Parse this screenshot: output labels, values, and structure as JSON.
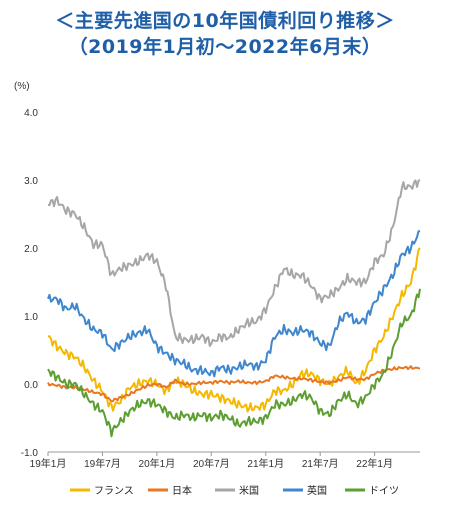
{
  "header": {
    "title_line1": "＜主要先進国の10年国債利回り推移＞",
    "title_line2": "（2019年1月初～2022年6月末）"
  },
  "chart_data": {
    "type": "line",
    "title": "＜主要先進国の10年国債利回り推移＞（2019年1月初～2022年6月末）",
    "ylabel": "(%)",
    "ylim": [
      -1.0,
      4.0
    ],
    "yticks": [
      "4.0",
      "3.0",
      "2.0",
      "1.0",
      "0.0",
      "-1.0"
    ],
    "xtick_labels": [
      "19年1月",
      "19年7月",
      "20年1月",
      "20年7月",
      "21年1月",
      "21年7月",
      "22年1月"
    ],
    "x": [
      "2019-01",
      "2019-02",
      "2019-03",
      "2019-04",
      "2019-05",
      "2019-06",
      "2019-07",
      "2019-08",
      "2019-09",
      "2019-10",
      "2019-11",
      "2019-12",
      "2020-01",
      "2020-02",
      "2020-03",
      "2020-04",
      "2020-05",
      "2020-06",
      "2020-07",
      "2020-08",
      "2020-09",
      "2020-10",
      "2020-11",
      "2020-12",
      "2021-01",
      "2021-02",
      "2021-03",
      "2021-04",
      "2021-05",
      "2021-06",
      "2021-07",
      "2021-08",
      "2021-09",
      "2021-10",
      "2021-11",
      "2021-12",
      "2022-01",
      "2022-02",
      "2022-03",
      "2022-04",
      "2022-05",
      "2022-06"
    ],
    "grid": false,
    "legend_position": "bottom",
    "series": [
      {
        "name": "フランス",
        "color": "#f5b800",
        "values": [
          0.7,
          0.55,
          0.45,
          0.4,
          0.25,
          0.05,
          -0.1,
          -0.35,
          -0.25,
          -0.05,
          0.0,
          0.05,
          0.0,
          -0.1,
          0.05,
          0.0,
          -0.1,
          -0.15,
          -0.15,
          -0.2,
          -0.25,
          -0.3,
          -0.35,
          -0.35,
          -0.3,
          -0.1,
          -0.1,
          0.0,
          0.15,
          0.15,
          0.05,
          0.0,
          0.1,
          0.2,
          0.0,
          0.2,
          0.5,
          0.7,
          1.0,
          1.3,
          1.5,
          2.0
        ]
      },
      {
        "name": "日本",
        "color": "#e87722",
        "values": [
          0.0,
          -0.02,
          -0.05,
          -0.05,
          -0.08,
          -0.12,
          -0.15,
          -0.25,
          -0.2,
          -0.15,
          -0.08,
          -0.02,
          0.0,
          -0.05,
          0.05,
          0.0,
          0.0,
          0.02,
          0.02,
          0.04,
          0.02,
          0.04,
          0.02,
          0.02,
          0.04,
          0.12,
          0.1,
          0.08,
          0.08,
          0.06,
          0.03,
          0.02,
          0.05,
          0.1,
          0.07,
          0.07,
          0.15,
          0.2,
          0.22,
          0.24,
          0.24,
          0.23
        ]
      },
      {
        "name": "米国",
        "color": "#a6a6a6",
        "values": [
          2.65,
          2.7,
          2.55,
          2.5,
          2.3,
          2.05,
          2.05,
          1.6,
          1.7,
          1.75,
          1.8,
          1.9,
          1.8,
          1.45,
          0.7,
          0.65,
          0.65,
          0.7,
          0.6,
          0.7,
          0.68,
          0.8,
          0.9,
          0.92,
          1.1,
          1.4,
          1.7,
          1.6,
          1.6,
          1.45,
          1.25,
          1.3,
          1.4,
          1.55,
          1.5,
          1.5,
          1.8,
          1.9,
          2.3,
          2.9,
          2.9,
          3.0
        ]
      },
      {
        "name": "英国",
        "color": "#3f86cc",
        "values": [
          1.25,
          1.25,
          1.1,
          1.15,
          0.95,
          0.8,
          0.75,
          0.5,
          0.6,
          0.7,
          0.75,
          0.8,
          0.55,
          0.45,
          0.35,
          0.3,
          0.2,
          0.2,
          0.15,
          0.25,
          0.2,
          0.25,
          0.3,
          0.25,
          0.35,
          0.7,
          0.8,
          0.75,
          0.8,
          0.75,
          0.6,
          0.55,
          0.9,
          1.05,
          0.9,
          0.95,
          1.2,
          1.4,
          1.6,
          1.9,
          2.0,
          2.25
        ]
      },
      {
        "name": "ドイツ",
        "color": "#5c9e31",
        "values": [
          0.2,
          0.1,
          0.0,
          0.0,
          -0.15,
          -0.3,
          -0.4,
          -0.7,
          -0.55,
          -0.4,
          -0.3,
          -0.25,
          -0.3,
          -0.4,
          -0.5,
          -0.45,
          -0.5,
          -0.45,
          -0.5,
          -0.45,
          -0.5,
          -0.6,
          -0.55,
          -0.55,
          -0.5,
          -0.3,
          -0.3,
          -0.25,
          -0.15,
          -0.2,
          -0.4,
          -0.45,
          -0.25,
          -0.15,
          -0.3,
          -0.2,
          0.0,
          0.15,
          0.5,
          0.9,
          1.0,
          1.4
        ]
      }
    ]
  }
}
